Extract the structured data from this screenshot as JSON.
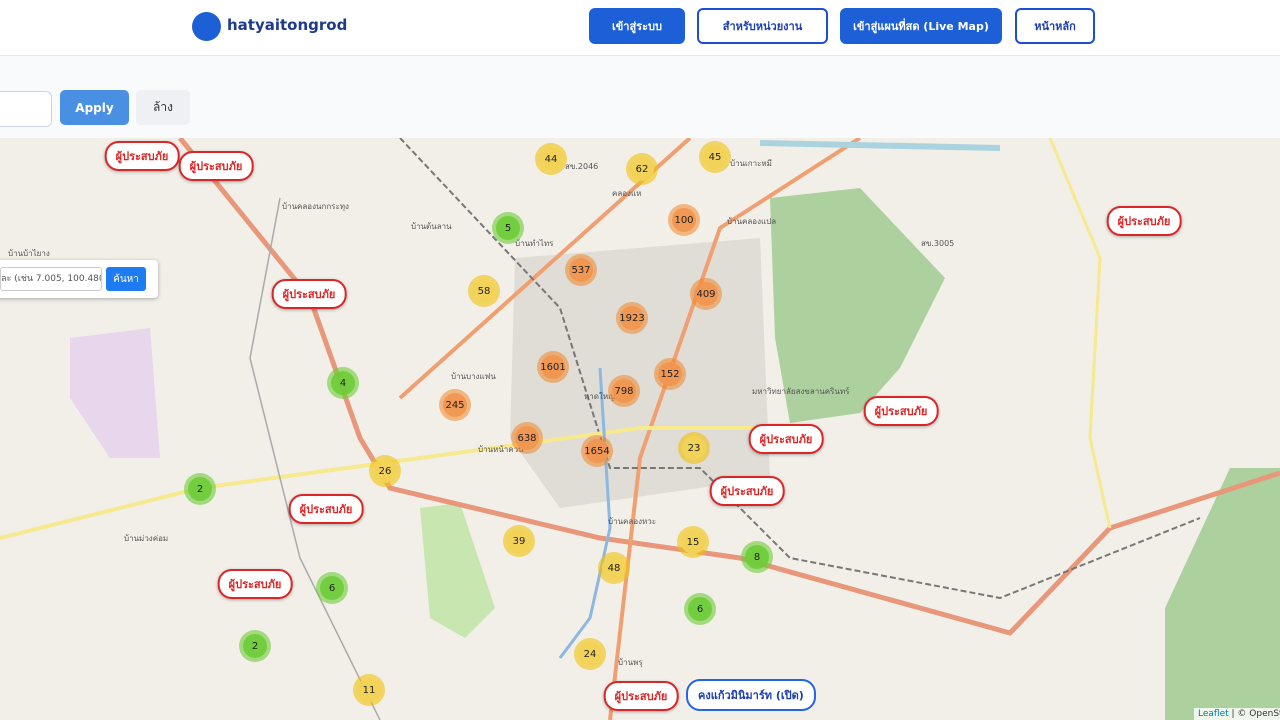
{
  "header": {
    "logo": "hatyaitongrod",
    "nav": [
      "เข้าสู่ระบบ",
      "สำหรับหน่วยงาน",
      "เข้าสู่แผนที่สด (Live Map)",
      "หน้าหลัก"
    ]
  },
  "filters": {
    "apply": "Apply",
    "clear": "ล้าง"
  },
  "map": {
    "search": {
      "placeholder": "ละ (เช่น 7.005, 100.480)",
      "button": "ค้นหา"
    },
    "clusters": [
      "44",
      "62",
      "45",
      "5",
      "100",
      "537",
      "58",
      "409",
      "1923",
      "1601",
      "152",
      "798",
      "4",
      "245",
      "638",
      "1654",
      "23",
      "26",
      "2",
      "39",
      "15",
      "8",
      "48",
      "6",
      "6",
      "2",
      "24",
      "11"
    ],
    "victim_labels": [
      "ผู้ประสบภัย",
      "ผู้ประสบภัย",
      "ผู้ประสบภัย",
      "ผู้ประสบภัย",
      "ผู้ประสบภัย",
      "ผู้ประสบภัย",
      "ผู้ประสบภัย",
      "ผู้ประสบภัย",
      "ผู้ประสบภัย",
      "ผู้ประสบภัย"
    ],
    "shop_label": "คงแก้วมินิมาร์ท (เปิด)",
    "places": [
      "สข.2046",
      "คลองแห",
      "บ้านคลองแปล",
      "บ้านเกาะหมี",
      "บ้านทำไทร",
      "บ้านต้นลาน",
      "บ้านคลองนกกระทุง",
      "บ้านบ้าไยาง",
      "บ้านบางแฟน",
      "หาดใหญ่",
      "บ้านหน้าควน",
      "บ้านคลองหวะ",
      "บ้านพรุ",
      "บ้านม่วงค่อม",
      "สข.3005",
      "มหาวิทยาลัยสงขลานครินทร์"
    ],
    "attribution": [
      "Leaflet",
      "| © OpenStreetMap"
    ]
  }
}
